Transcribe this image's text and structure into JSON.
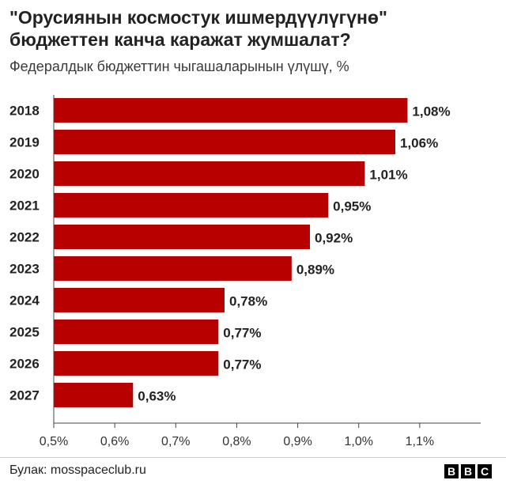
{
  "header": {
    "title_line1": "\"Орусиянын космостук ишмердүүлүгүнө\"",
    "title_line2": "бюджеттен канча каражат жумшалат?",
    "subtitle": "Федералдык бюджеттин чыгашаларынын үлүшү, %"
  },
  "chart_data": {
    "type": "bar",
    "orientation": "horizontal",
    "categories": [
      "2018",
      "2019",
      "2020",
      "2021",
      "2022",
      "2023",
      "2024",
      "2025",
      "2026",
      "2027"
    ],
    "values": [
      1.08,
      1.06,
      1.01,
      0.95,
      0.92,
      0.89,
      0.78,
      0.77,
      0.77,
      0.63
    ],
    "value_labels": [
      "1,08%",
      "1,06%",
      "1,01%",
      "0,95%",
      "0,92%",
      "0,89%",
      "0,78%",
      "0,77%",
      "0,77%",
      "0,63%"
    ],
    "xlim": [
      0.5,
      1.2
    ],
    "xticks": [
      0.5,
      0.6,
      0.7,
      0.8,
      0.9,
      1.0,
      1.1
    ],
    "xtick_labels": [
      "0,5%",
      "0,6%",
      "0,7%",
      "0,8%",
      "0,9%",
      "1,0%",
      "1,1%"
    ],
    "xlabel": "",
    "ylabel": "",
    "bar_color": "#b80000",
    "grid": false
  },
  "footer": {
    "source": "Булак: mosspaceclub.ru",
    "logo_letters": [
      "B",
      "B",
      "C"
    ]
  }
}
